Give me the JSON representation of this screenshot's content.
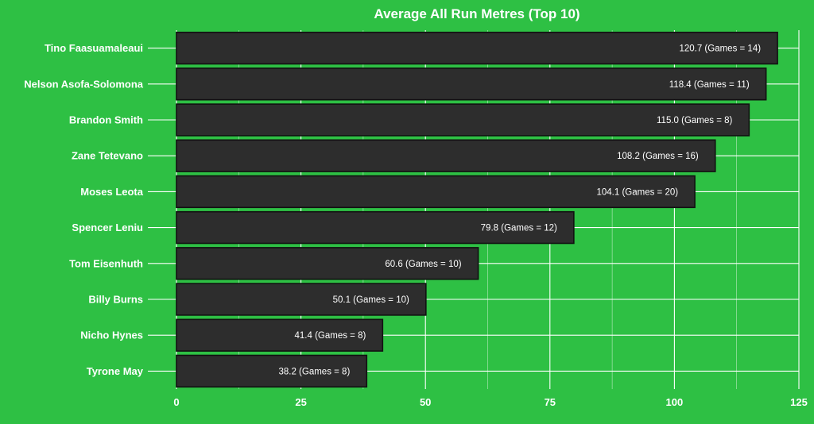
{
  "chart_data": {
    "type": "bar",
    "orientation": "horizontal",
    "title": "Average All Run Metres (Top 10)",
    "xlabel": "",
    "ylabel": "",
    "xlim": [
      0,
      125
    ],
    "x_ticks": [
      0,
      25,
      50,
      75,
      100,
      125
    ],
    "grid": true,
    "categories": [
      "Tino Faasuamaleaui",
      "Nelson Asofa-Solomona",
      "Brandon Smith",
      "Zane Tetevano",
      "Moses Leota",
      "Spencer Leniu",
      "Tom Eisenhuth",
      "Billy Burns",
      "Nicho Hynes",
      "Tyrone May"
    ],
    "values": [
      120.7,
      118.4,
      115.0,
      108.2,
      104.1,
      79.8,
      60.6,
      50.1,
      41.4,
      38.2
    ],
    "data_labels": [
      "120.7 (Games = 14)",
      "118.4 (Games = 11)",
      "115.0 (Games = 8)",
      "108.2 (Games = 16)",
      "104.1 (Games = 20)",
      "79.8 (Games = 12)",
      "60.6 (Games = 10)",
      "50.1 (Games = 10)",
      "41.4 (Games = 8)",
      "38.2 (Games = 8)"
    ],
    "colors": {
      "background": "#2ec044",
      "bar_fill": "#2d2d2d",
      "bar_stroke": "#111111",
      "grid": "#ffffff",
      "text": "#ffffff"
    }
  }
}
